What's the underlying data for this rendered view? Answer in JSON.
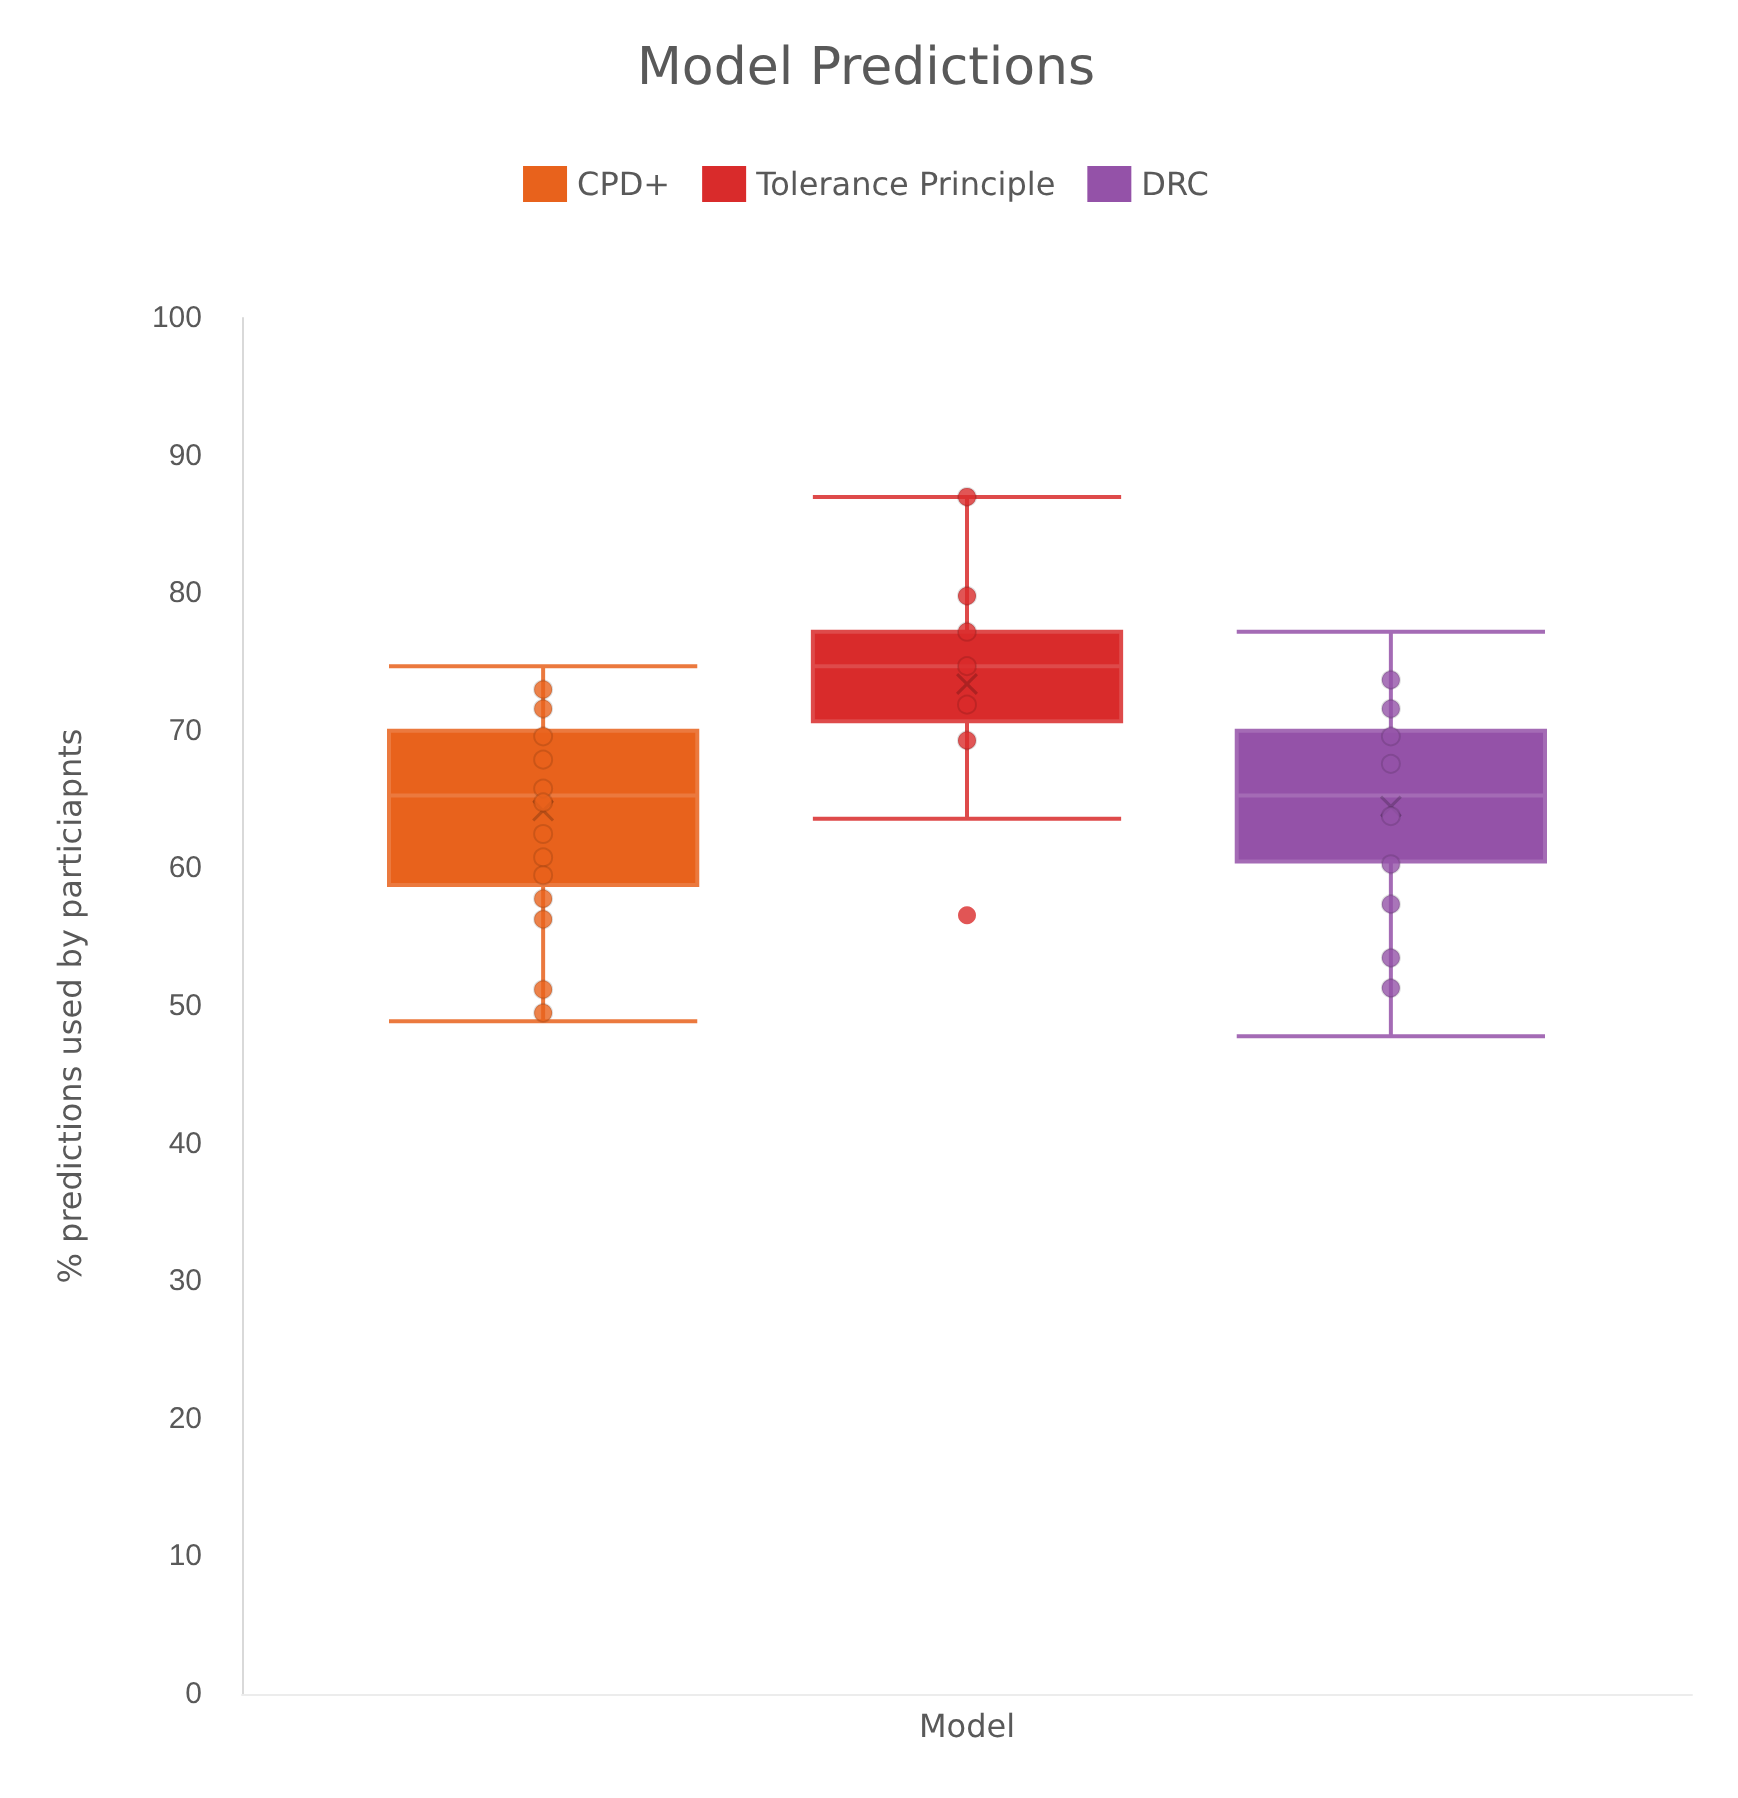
{
  "chart_data": {
    "type": "box",
    "title": "Model Predictions",
    "ylabel": "% predictions used by particiapnts",
    "categories": [
      "Model"
    ],
    "ylim": [
      0,
      100
    ],
    "yticks": [
      0,
      10,
      20,
      30,
      40,
      50,
      60,
      70,
      80,
      90,
      100
    ],
    "grid": false,
    "legend": "top",
    "marker": "circle",
    "series": [
      {
        "name": "CPD+",
        "color": "#e8621c",
        "boxes": [
          {
            "low": 48.9,
            "q1": 58.8,
            "median": 65.3,
            "q3": 70.0,
            "high": 74.7,
            "mean": 64.2
          }
        ]
      },
      {
        "name": "Tolerance Principle",
        "color": "#d92b2b",
        "boxes": [
          {
            "low": 63.6,
            "q1": 70.7,
            "median": 74.7,
            "q3": 77.2,
            "high": 87.0,
            "mean": 73.4,
            "outliers": [
              56.6
            ]
          }
        ]
      },
      {
        "name": "DRC",
        "color": "#9452a8",
        "boxes": [
          {
            "low": 47.8,
            "q1": 60.5,
            "median": 65.3,
            "q3": 70.0,
            "high": 77.2,
            "mean": 64.5
          }
        ]
      },
      {
        "type": "scatter",
        "color": "#e8621c",
        "x": [
          "Model",
          "Model",
          "Model",
          "Model",
          "Model",
          "Model",
          "Model",
          "Model",
          "Model",
          "Model",
          "Model",
          "Model",
          "Model"
        ],
        "values": [
          73.0,
          71.6,
          69.6,
          67.9,
          65.8,
          64.8,
          62.5,
          60.8,
          59.5,
          57.8,
          56.3,
          51.2,
          49.5
        ]
      },
      {
        "type": "scatter",
        "color": "#d92b2b",
        "x": [
          "Model",
          "Model",
          "Model",
          "Model",
          "Model",
          "Model"
        ],
        "values": [
          87.0,
          79.8,
          77.2,
          74.7,
          71.9,
          69.3
        ]
      },
      {
        "type": "scatter",
        "color": "#9452a8",
        "x": [
          "Model",
          "Model",
          "Model",
          "Model",
          "Model",
          "Model",
          "Model",
          "Model",
          "Model"
        ],
        "values": [
          73.7,
          71.6,
          69.6,
          67.6,
          63.8,
          60.3,
          57.4,
          53.5,
          51.3
        ]
      }
    ]
  }
}
